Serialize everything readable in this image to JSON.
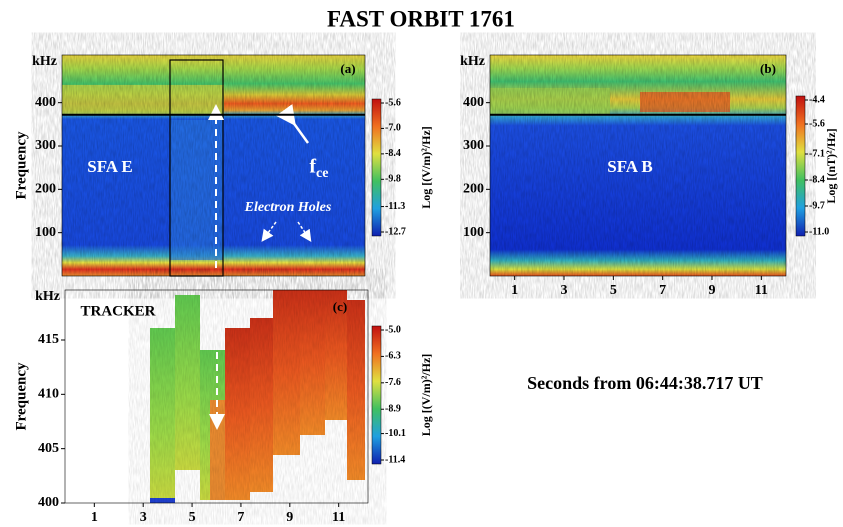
{
  "title": "FAST ORBIT 1761",
  "xlabel": "Seconds from 06:44:38.717 UT",
  "chart_data": [
    {
      "type": "heatmap",
      "panel": "(a)",
      "ylabel": "Frequency",
      "yunit": "kHz",
      "xlim": [
        0,
        12
      ],
      "ylim": [
        0,
        510
      ],
      "yticks": [
        100,
        200,
        300,
        400
      ],
      "hline": 372,
      "annotations": [
        "SFA E",
        "Electron Holes"
      ],
      "fce": {
        "text": "f",
        "sub": "ce"
      },
      "colorbar": {
        "label": "Log [(V/m)²/Hz]",
        "lim": [
          -12.7,
          -5.6
        ],
        "ticks": [
          -5.6,
          {
            "value": -7,
            "label": "-7.0"
          },
          -8.4,
          -9.8,
          -11.3,
          -12.7
        ]
      }
    },
    {
      "type": "heatmap",
      "panel": "(b)",
      "yunit": "kHz",
      "xlim": [
        0,
        12
      ],
      "ylim": [
        0,
        510
      ],
      "yticks": [
        100,
        200,
        300,
        400
      ],
      "xticks": [
        1,
        3,
        5,
        7,
        9,
        11
      ],
      "hline": 372,
      "annotations": [
        "SFA B"
      ],
      "colorbar": {
        "label": "Log [(nT)²/Hz]",
        "lim": [
          -11,
          -4.4
        ],
        "ticks": [
          -4.4,
          -5.6,
          -7.1,
          -8.4,
          -9.7,
          {
            "value": -11,
            "label": "-11.0"
          }
        ]
      }
    },
    {
      "type": "heatmap",
      "panel": "(c)",
      "ylabel": "Frequency",
      "yunit": "kHz",
      "xlim": [
        -0.2,
        12.2
      ],
      "ylim": [
        400,
        419.6
      ],
      "yticks": [
        400,
        405,
        410,
        415
      ],
      "xticks": [
        1,
        3,
        5,
        7,
        9,
        11
      ],
      "annotations": [
        "TRACKER"
      ],
      "colorbar": {
        "label": "Log [(V/m)²/Hz]",
        "lim": [
          -11.4,
          -5
        ],
        "ticks": [
          {
            "value": -5,
            "label": "-5.0"
          },
          -6.3,
          -7.6,
          -8.9,
          -10.1,
          -11.4
        ]
      }
    }
  ]
}
